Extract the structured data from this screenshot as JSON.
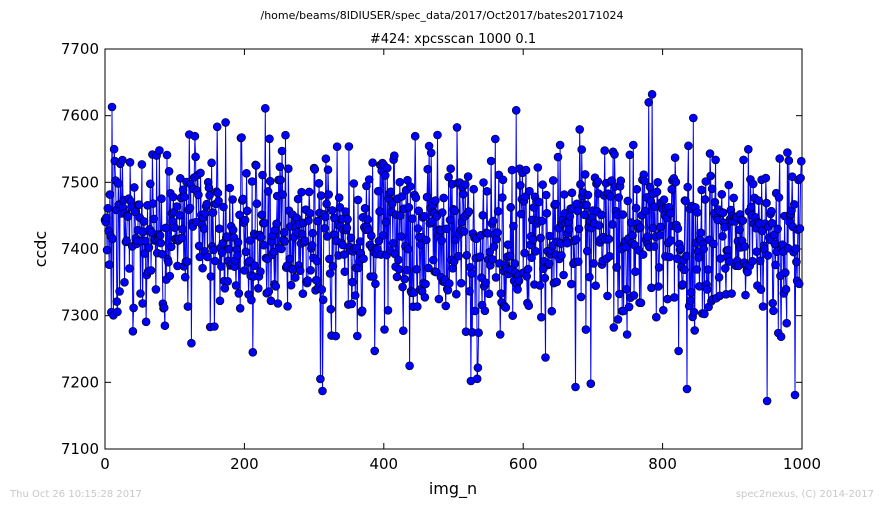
{
  "figure": {
    "suptitle": "/home/beams/8IDIUSER/spec_data/2017/Oct2017/bates20171024",
    "footer_left": "Thu Oct 26 10:15:28 2017",
    "footer_right": "spec2nexus, (C) 2014-2017"
  },
  "chart_data": {
    "type": "line",
    "title": "#424: xpcsscan 1000 0.1",
    "xlabel": "img_n",
    "ylabel": "ccdc",
    "xlim": [
      0,
      1000
    ],
    "ylim": [
      7100,
      7700
    ],
    "xticks": [
      0,
      200,
      400,
      600,
      800,
      1000
    ],
    "yticks": [
      7100,
      7200,
      7300,
      7400,
      7500,
      7600,
      7700
    ],
    "grid": false,
    "legend": "none",
    "line_color": "#0000ff",
    "marker": "circle",
    "series": [
      {
        "n_points": 1000,
        "summary": {
          "min": 7172,
          "max": 7632,
          "typical_center": 7420
        },
        "highlighted_points": [
          {
            "x": 10,
            "y": 7613
          },
          {
            "x": 230,
            "y": 7611
          },
          {
            "x": 590,
            "y": 7608
          },
          {
            "x": 785,
            "y": 7632
          },
          {
            "x": 780,
            "y": 7620
          },
          {
            "x": 309,
            "y": 7205
          },
          {
            "x": 312,
            "y": 7187
          },
          {
            "x": 675,
            "y": 7193
          },
          {
            "x": 697,
            "y": 7198
          },
          {
            "x": 835,
            "y": 7190
          },
          {
            "x": 950,
            "y": 7172
          },
          {
            "x": 990,
            "y": 7181
          },
          {
            "x": 212,
            "y": 7245
          },
          {
            "x": 535,
            "y": 7222
          },
          {
            "x": 525,
            "y": 7202
          }
        ]
      }
    ]
  }
}
